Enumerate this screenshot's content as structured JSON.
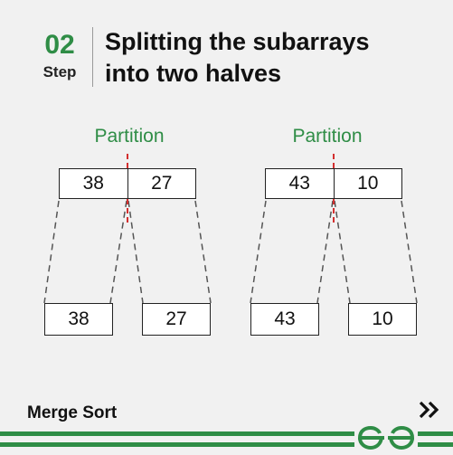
{
  "header": {
    "step_number": "02",
    "step_label": "Step",
    "title_line1": "Splitting the subarrays",
    "title_line2": "into two halves"
  },
  "diagram": {
    "left": {
      "partition_label": "Partition",
      "array": [
        "38",
        "27"
      ],
      "halves": [
        "38",
        "27"
      ]
    },
    "right": {
      "partition_label": "Partition",
      "array": [
        "43",
        "10"
      ],
      "halves": [
        "43",
        "10"
      ]
    }
  },
  "footer": {
    "label": "Merge Sort",
    "next_icon": "double-chevron-right-icon",
    "logo_icon": "geeksforgeeks-logo-icon"
  },
  "colors": {
    "accent": "#2f8d46",
    "partition_line": "#d32f2f",
    "dashed_line": "#555555"
  }
}
